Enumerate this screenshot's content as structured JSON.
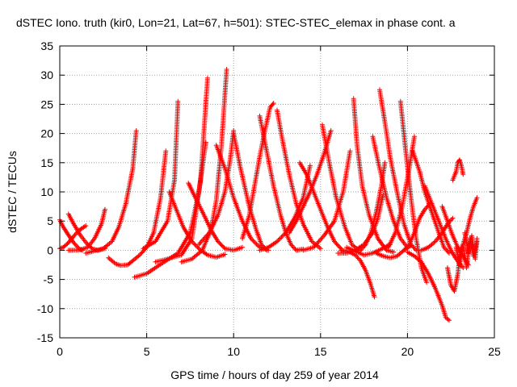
{
  "chart_data": {
    "type": "scatter",
    "title": "dSTEC Iono. truth (kir0, Lon=21, Lat=67, h=501): STEC-STEC_elemax in phase cont. a",
    "xlabel": "GPS time / hours of day 259 of year 2014",
    "ylabel": "dSTEC  / TECUs",
    "xlim": [
      0,
      25
    ],
    "ylim": [
      -15,
      35
    ],
    "grid": true,
    "marker": "+",
    "x_ticks": [
      0,
      5,
      10,
      15,
      20,
      25
    ],
    "y_ticks": [
      -15,
      -10,
      -5,
      0,
      5,
      10,
      15,
      20,
      25,
      30,
      35
    ],
    "series": [
      {
        "color": "#ff0000",
        "arcs": [
          {
            "x": [
              0.0,
              0.2,
              0.5,
              0.8,
              1.1,
              1.3
            ],
            "y": [
              5.2,
              4.0,
              2.6,
              1.3,
              0.3,
              0.0
            ]
          },
          {
            "x": [
              0.0,
              0.2,
              0.5,
              0.8,
              1.1,
              1.5
            ],
            "y": [
              0.3,
              0.5,
              1.3,
              2.4,
              3.4,
              4.2
            ]
          },
          {
            "x": [
              0.5,
              0.8,
              1.2,
              1.6,
              1.9,
              2.2,
              2.6
            ],
            "y": [
              6.2,
              4.5,
              2.5,
              1.0,
              0.2,
              0.0,
              0.3
            ]
          },
          {
            "x": [
              0.5,
              0.8,
              1.2,
              1.6,
              2.0,
              2.4,
              2.6
            ],
            "y": [
              0.0,
              0.0,
              0.1,
              0.5,
              2.0,
              4.5,
              7.0
            ]
          },
          {
            "x": [
              1.5,
              2.0,
              2.5,
              3.0,
              3.4,
              3.8,
              4.2,
              4.4
            ],
            "y": [
              -0.5,
              -0.1,
              0.3,
              1.5,
              4.0,
              8.0,
              14.0,
              20.5
            ]
          },
          {
            "x": [
              2.8,
              3.2,
              3.5,
              3.9,
              4.2,
              4.6,
              5.0,
              5.4,
              5.8,
              6.1
            ],
            "y": [
              -1.3,
              -2.3,
              -2.6,
              -2.5,
              -1.8,
              -0.8,
              0.5,
              3.0,
              9.0,
              17.0
            ]
          },
          {
            "x": [
              4.3,
              5.0,
              6.0,
              6.8,
              7.5,
              8.0,
              8.4
            ],
            "y": [
              -4.6,
              -4.0,
              -2.0,
              -0.5,
              3.0,
              10.0,
              18.5
            ]
          },
          {
            "x": [
              4.8,
              5.5,
              6.2,
              6.6,
              6.8
            ],
            "y": [
              0.3,
              1.5,
              5.0,
              12.0,
              25.5
            ]
          },
          {
            "x": [
              5.5,
              6.2,
              7.0,
              7.6,
              8.1,
              8.5
            ],
            "y": [
              -2.0,
              -1.5,
              -0.8,
              2.0,
              12.0,
              29.5
            ]
          },
          {
            "x": [
              6.3,
              6.7,
              7.1,
              7.6,
              8.1,
              8.5,
              9.0,
              9.5
            ],
            "y": [
              10.0,
              7.0,
              4.0,
              1.5,
              0.0,
              -0.8,
              -1.2,
              -0.7
            ]
          },
          {
            "x": [
              7.0,
              7.6,
              8.2,
              8.7,
              9.0,
              9.3,
              9.6
            ],
            "y": [
              -2.0,
              -1.5,
              0.0,
              3.5,
              8.5,
              18.0,
              31.0
            ]
          },
          {
            "x": [
              7.4,
              7.8,
              8.3,
              8.7,
              9.1,
              9.5,
              10.0,
              10.5
            ],
            "y": [
              11.5,
              9.0,
              6.0,
              3.5,
              1.5,
              0.3,
              0.0,
              0.5
            ]
          },
          {
            "x": [
              8.0,
              8.6,
              9.1,
              9.5,
              9.8,
              10.0
            ],
            "y": [
              1.0,
              3.0,
              6.0,
              10.0,
              15.5,
              20.5
            ]
          },
          {
            "x": [
              9.0,
              9.5,
              10.0,
              10.5,
              11.0,
              11.5,
              12.0
            ],
            "y": [
              18.0,
              14.0,
              9.0,
              5.0,
              2.0,
              0.5,
              0.0
            ]
          },
          {
            "x": [
              10.0,
              10.4,
              10.9,
              11.3,
              11.6,
              11.9
            ],
            "y": [
              20.0,
              14.0,
              7.5,
              3.5,
              1.0,
              0.0
            ]
          },
          {
            "x": [
              10.5,
              10.9,
              11.2,
              11.5,
              11.8,
              12.1,
              12.3
            ],
            "y": [
              2.0,
              6.0,
              11.0,
              16.0,
              20.5,
              24.5,
              25.2
            ]
          },
          {
            "x": [
              11.5,
              11.9,
              12.3,
              12.7,
              13.0,
              13.3,
              13.6,
              14.0
            ],
            "y": [
              23.0,
              17.0,
              11.0,
              6.0,
              3.0,
              1.0,
              0.0,
              0.2
            ]
          },
          {
            "x": [
              11.5,
              12.0,
              12.5,
              13.0,
              13.5,
              14.0,
              14.4
            ],
            "y": [
              0.0,
              0.5,
              1.5,
              3.0,
              5.5,
              9.0,
              14.5
            ]
          },
          {
            "x": [
              12.5,
              12.8,
              13.2,
              13.6,
              14.0,
              14.5,
              15.0
            ],
            "y": [
              24.0,
              19.0,
              13.0,
              8.0,
              4.5,
              1.5,
              0.3
            ]
          },
          {
            "x": [
              13.2,
              13.6,
              14.0,
              14.4,
              14.8,
              15.2,
              15.6
            ],
            "y": [
              3.0,
              5.0,
              7.5,
              10.0,
              13.0,
              16.5,
              20.5
            ]
          },
          {
            "x": [
              13.8,
              14.2,
              14.6,
              15.0,
              15.4,
              15.8,
              16.2
            ],
            "y": [
              15.0,
              13.0,
              10.0,
              7.0,
              4.0,
              1.5,
              0.2
            ]
          },
          {
            "x": [
              15.1,
              15.5,
              15.9,
              16.4,
              16.8,
              17.2
            ],
            "y": [
              21.5,
              15.0,
              9.0,
              4.0,
              1.0,
              0.0
            ]
          },
          {
            "x": [
              14.0,
              14.6,
              15.2,
              15.8,
              16.3,
              16.7
            ],
            "y": [
              0.0,
              0.5,
              2.5,
              5.0,
              10.0,
              17.0
            ]
          },
          {
            "x": [
              16.0,
              16.5,
              17.0,
              17.5,
              18.0,
              18.3,
              18.6
            ],
            "y": [
              -0.5,
              -0.5,
              0.0,
              1.0,
              3.0,
              5.5,
              9.5
            ]
          },
          {
            "x": [
              16.5,
              17.0,
              17.5,
              18.0,
              18.5,
              19.0
            ],
            "y": [
              0.5,
              -0.2,
              -0.8,
              -0.5,
              0.2,
              1.0
            ]
          },
          {
            "x": [
              16.2,
              16.6,
              17.0,
              17.3,
              17.6,
              17.9,
              18.1
            ],
            "y": [
              0.0,
              -0.2,
              -0.8,
              -1.8,
              -3.5,
              -6.0,
              -8.0
            ]
          },
          {
            "x": [
              16.9,
              17.1,
              17.4,
              17.8,
              18.3,
              18.8,
              19.2
            ],
            "y": [
              26.0,
              18.0,
              11.0,
              6.0,
              2.0,
              0.0,
              -0.3
            ]
          },
          {
            "x": [
              17.3,
              17.6,
              17.9,
              18.2,
              18.5,
              18.7
            ],
            "y": [
              0.0,
              1.0,
              3.0,
              6.5,
              11.0,
              15.0
            ]
          },
          {
            "x": [
              18.0,
              18.4,
              18.8,
              19.2,
              19.6,
              20.0
            ],
            "y": [
              19.5,
              14.0,
              9.0,
              5.0,
              2.0,
              0.5
            ]
          },
          {
            "x": [
              18.2,
              18.6,
              19.0,
              19.4,
              19.8,
              20.2
            ],
            "y": [
              -0.5,
              -1.0,
              -1.3,
              -1.0,
              0.0,
              0.8
            ]
          },
          {
            "x": [
              18.4,
              18.7,
              19.0,
              19.4,
              19.8,
              20.2,
              20.5
            ],
            "y": [
              27.5,
              22.0,
              16.0,
              10.0,
              4.5,
              1.0,
              0.0
            ]
          },
          {
            "x": [
              18.9,
              19.3,
              19.7,
              20.1,
              20.4
            ],
            "y": [
              0.5,
              3.0,
              7.5,
              14.0,
              19.5
            ]
          },
          {
            "x": [
              19.6,
              19.9,
              20.2,
              20.5,
              20.8,
              21.1
            ],
            "y": [
              25.5,
              17.0,
              9.0,
              2.0,
              -3.0,
              -5.5
            ]
          },
          {
            "x": [
              19.8,
              20.1,
              20.4,
              20.7,
              21.0,
              21.3
            ],
            "y": [
              0.0,
              1.0,
              3.0,
              5.5,
              7.0,
              8.0
            ]
          },
          {
            "x": [
              20.0,
              20.4,
              20.8,
              21.2,
              21.6,
              22.0,
              22.2,
              22.4
            ],
            "y": [
              -0.3,
              -1.0,
              -2.0,
              -4.0,
              -6.5,
              -9.5,
              -11.5,
              -12.0
            ]
          },
          {
            "x": [
              20.3,
              20.7,
              21.0,
              21.4,
              21.8,
              22.1,
              22.4
            ],
            "y": [
              17.0,
              13.5,
              10.0,
              6.5,
              3.0,
              0.5,
              -0.5
            ]
          },
          {
            "x": [
              20.8,
              21.2,
              21.6,
              22.0,
              22.3,
              22.6
            ],
            "y": [
              0.0,
              0.5,
              1.5,
              3.0,
              4.5,
              5.5
            ]
          },
          {
            "x": [
              21.0,
              21.4,
              21.8,
              22.2,
              22.5,
              22.8,
              23.2
            ],
            "y": [
              11.0,
              8.0,
              5.0,
              2.0,
              0.0,
              -1.5,
              -3.0
            ]
          },
          {
            "x": [
              22.0,
              22.3,
              22.6,
              22.9,
              23.2,
              23.5
            ],
            "y": [
              7.5,
              5.0,
              2.5,
              0.5,
              -1.0,
              -2.5
            ]
          },
          {
            "x": [
              22.3,
              22.5,
              22.7,
              22.9,
              23.0,
              23.1
            ],
            "y": [
              -3.0,
              -6.0,
              -7.0,
              -4.0,
              -1.0,
              0.5
            ]
          },
          {
            "x": [
              22.6,
              22.8,
              22.9,
              23.0,
              23.1,
              23.2
            ],
            "y": [
              12.0,
              13.5,
              15.0,
              15.5,
              14.5,
              13.0
            ]
          },
          {
            "x": [
              22.8,
              23.0,
              23.2,
              23.4,
              23.6,
              23.8,
              24.0
            ],
            "y": [
              0.5,
              -2.5,
              1.0,
              -3.0,
              2.0,
              -1.0,
              1.5
            ]
          },
          {
            "x": [
              23.0,
              23.2,
              23.4,
              23.6,
              23.8,
              24.0
            ],
            "y": [
              -1.0,
              1.0,
              3.0,
              5.5,
              7.5,
              9.0
            ]
          },
          {
            "x": [
              23.3,
              23.5,
              23.7,
              23.9,
              24.0
            ],
            "y": [
              3.0,
              -0.5,
              2.5,
              -1.5,
              2.0
            ]
          }
        ]
      }
    ]
  }
}
